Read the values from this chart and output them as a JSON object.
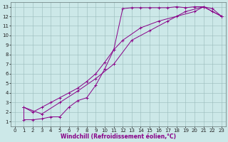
{
  "title": "",
  "xlabel": "Windchill (Refroidissement éolien,°C)",
  "ylabel": "",
  "bg_color": "#cce8e8",
  "line_color": "#880088",
  "grid_color": "#99bbbb",
  "xlim": [
    -0.5,
    23.5
  ],
  "ylim": [
    0.5,
    13.5
  ],
  "xticks": [
    0,
    1,
    2,
    3,
    4,
    5,
    6,
    7,
    8,
    9,
    10,
    11,
    12,
    13,
    14,
    15,
    16,
    17,
    18,
    19,
    20,
    21,
    22,
    23
  ],
  "yticks": [
    1,
    2,
    3,
    4,
    5,
    6,
    7,
    8,
    9,
    10,
    11,
    12,
    13
  ],
  "line1_x": [
    1,
    1,
    2,
    3,
    4,
    5,
    6,
    7,
    8,
    9,
    10,
    11,
    12,
    13,
    14,
    15,
    16,
    17,
    18,
    19,
    20,
    21,
    22,
    23
  ],
  "line1_y": [
    2.5,
    1.2,
    1.2,
    1.3,
    1.5,
    1.5,
    2.5,
    3.2,
    3.5,
    4.8,
    6.5,
    8.5,
    12.8,
    12.9,
    12.9,
    12.9,
    12.9,
    12.9,
    13.0,
    12.9,
    13.0,
    13.0,
    12.5,
    12.0
  ],
  "line2_x": [
    1,
    2,
    3,
    4,
    5,
    6,
    7,
    8,
    9,
    10,
    11,
    12,
    14,
    16,
    18,
    20,
    21,
    22,
    23
  ],
  "line2_y": [
    2.5,
    2.0,
    2.5,
    3.0,
    3.5,
    4.0,
    4.5,
    5.2,
    6.0,
    7.2,
    8.5,
    9.5,
    10.8,
    11.5,
    12.0,
    12.5,
    13.0,
    12.8,
    12.0
  ],
  "line3_x": [
    1,
    3,
    5,
    7,
    9,
    11,
    13,
    15,
    17,
    19,
    21,
    23
  ],
  "line3_y": [
    2.5,
    1.8,
    3.0,
    4.2,
    5.5,
    7.0,
    9.5,
    10.5,
    11.5,
    12.5,
    13.0,
    12.0
  ],
  "tick_fontsize": 5.0,
  "xlabel_fontsize": 5.5
}
